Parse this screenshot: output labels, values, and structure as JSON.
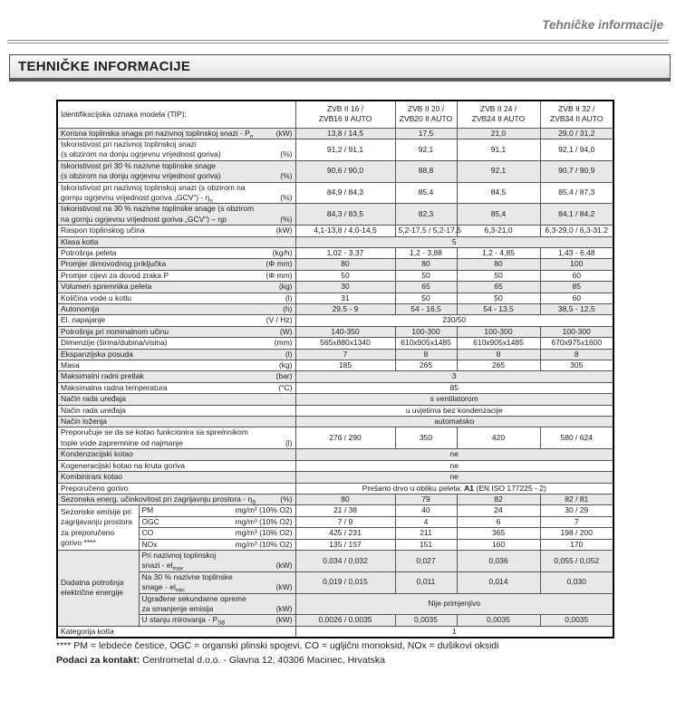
{
  "page": {
    "header_right": "Tehničke informacije",
    "title": "TEHNIČKE INFORMACIJE",
    "footnote": "**** PM = lebdeće čestice, OGC = organski plinski spojevi, CO = ugljični monoksid, NOx = dušikovi oksidi",
    "contact_label": "Podaci za kontakt:",
    "contact_text": " Centrometal d.o.o. - Glavna 12, 40306 Macinec, Hrvatska"
  },
  "table": {
    "id_label": "Identifikacijska oznaka modela (TIP):",
    "models": [
      [
        "ZVB II 16 /",
        "ZVB16 II AUTO"
      ],
      [
        "ZVB II 20 /",
        "ZVB20 II AUTO"
      ],
      [
        "ZVB II 24 /",
        "ZVB24 II AUTO"
      ],
      [
        "ZVB II 32 /",
        "ZVB34 II AUTO"
      ]
    ],
    "rows": [
      {
        "label": [
          "Korisna toplinska snaga pri nazivnoj toplinskoj snazi - P~n~"
        ],
        "unit": "(kW)",
        "values": [
          "13,8 / 14,5",
          "17,5",
          "21,0",
          "29,0 / 31,2"
        ],
        "shade": true
      },
      {
        "label": [
          "Iskoristivost pri nazivnoj toplinskoj snazi",
          "(s obzirom na donju ogrjevnu vrijednost goriva)"
        ],
        "unit": "(%)",
        "values": [
          "91,2 / 91,1",
          "92,1",
          "91,1",
          "92,1 / 94,0"
        ],
        "shade": false
      },
      {
        "label": [
          "Iskoristivost pri 30 % nazivne toplinske snage",
          "(s obzirom na donju ogrjevnu vrijednost goriva)"
        ],
        "unit": "(%)",
        "values": [
          "90,6 / 90,0",
          "88,8",
          "92,1",
          "90,7 / 90,9"
        ],
        "shade": true
      },
      {
        "label": [
          "Iskoristivost pri nazivnoj toplinskoj snazi (s obzirom na",
          "gornju ogrjevnu vrijednost goriva „GCV“) - η~n~"
        ],
        "unit": "(%)",
        "values": [
          "84,9 / 84,3",
          "85,4",
          "84,5",
          "85,4 / 87,3"
        ],
        "shade": false
      },
      {
        "label": [
          "Iskoristivost na 30 % nazivne toplinske snage (s obzirom",
          "na gornju ogrjevnu vrijednost goriva „GCV“) – ηp"
        ],
        "unit": "(%)",
        "values": [
          "84,3 / 83,5",
          "82,3",
          "85,4",
          "84,1 / 84,2"
        ],
        "shade": true
      },
      {
        "label": [
          "Raspon toplinskog učina"
        ],
        "unit": "(kW)",
        "values": [
          "4,1-13,8 / 4,0-14,5",
          "5,2-17,5 / 5,2-17,5",
          "6,3-21,0",
          "6,3-29,0 / 6,3-31,2"
        ],
        "shade": false
      },
      {
        "label": [
          "Klasa kotla"
        ],
        "unit": "",
        "span": "5",
        "shade": true
      },
      {
        "label": [
          "Potrošnja peleta"
        ],
        "unit": "(kg/h)",
        "values": [
          "1,02 - 3,37",
          "1,2 - 3,88",
          "1,2 - 4,85",
          "1,43 - 6,48"
        ],
        "shade": false
      },
      {
        "label": [
          "Promjer dimovodnog priključka"
        ],
        "unit": "(Φ mm)",
        "values": [
          "80",
          "80",
          "80",
          "100"
        ],
        "shade": true
      },
      {
        "label": [
          "Promjer cijevi za dovod zraka P"
        ],
        "unit": "(Φ mm)",
        "values": [
          "50",
          "50",
          "50",
          "60"
        ],
        "shade": false
      },
      {
        "label": [
          "Volumen spremnika peleta"
        ],
        "unit": "(kg)",
        "values": [
          "30",
          "65",
          "65",
          "85"
        ],
        "shade": true
      },
      {
        "label": [
          "Količina vode u kotlu"
        ],
        "unit": "(l)",
        "values": [
          "31",
          "50",
          "50",
          "60"
        ],
        "shade": false
      },
      {
        "label": [
          "Autonomija"
        ],
        "unit": "(h)",
        "values": [
          "29,5 - 9",
          "54 - 16,5",
          "54 - 13,5",
          "38,5 - 12,5"
        ],
        "shade": true
      },
      {
        "label": [
          "El. napajanje"
        ],
        "unit": "(V / Hz)",
        "span": "230/50",
        "shade": false
      },
      {
        "label": [
          "Potrošnja pri nominalnom učinu"
        ],
        "unit": "(W)",
        "values": [
          "140-350",
          "100-300",
          "100-300",
          "100-300"
        ],
        "shade": true
      },
      {
        "label": [
          "Dimenzije (širina/dubina/visina)"
        ],
        "unit": "(mm)",
        "values": [
          "565x880x1340",
          "610x905x1485",
          "610x905x1485",
          "670x975x1600"
        ],
        "shade": false
      },
      {
        "label": [
          "Ekspanzijska posuda"
        ],
        "unit": "(l)",
        "values": [
          "7",
          "8",
          "8",
          "8"
        ],
        "shade": true
      },
      {
        "label": [
          "Masa"
        ],
        "unit": "(kg)",
        "values": [
          "185",
          "265",
          "265",
          "305"
        ],
        "shade": false
      },
      {
        "label": [
          "Maksimalni radni pretlak"
        ],
        "unit": "(bar)",
        "span": "3",
        "shade": true
      },
      {
        "label": [
          "Maksimalna radna temperatura"
        ],
        "unit": "(°C)",
        "span": "85",
        "shade": false
      },
      {
        "label": [
          "Način rada uređaja"
        ],
        "unit": "",
        "span": "s ventilatorom",
        "shade": true
      },
      {
        "label": [
          "Način rada uređaja"
        ],
        "unit": "",
        "span": "u uvjetima bez kondenzacije",
        "shade": false
      },
      {
        "label": [
          "Način loženja"
        ],
        "unit": "",
        "span": "automatsko",
        "shade": true
      },
      {
        "label": [
          "Preporučuje se da se kotao funkcionira sa spremnikom",
          "tople vode zapremnine od najmanje"
        ],
        "unit": "(l)",
        "values": [
          "276 / 290",
          "350",
          "420",
          "580 / 624"
        ],
        "shade": false
      },
      {
        "label": [
          "Kondenzacijski kotao"
        ],
        "unit": "",
        "span": "ne",
        "shade": true
      },
      {
        "label": [
          "Kogeneracijski kotao na kruta goriva"
        ],
        "unit": "",
        "span": "ne",
        "shade": false
      },
      {
        "label": [
          "Kombinirani kotao"
        ],
        "unit": "",
        "span": "ne",
        "shade": true
      },
      {
        "label": [
          "Preporučeno gorivo"
        ],
        "unit": "",
        "span": "Prešano drvo u obliku peleta: *A1* (EN ISO 177225 - 2)",
        "shade": false
      },
      {
        "label": [
          "Sezonska energ. učinkovitost pri zagrijavnju prostora - η~S~"
        ],
        "unit": "(%)",
        "values": [
          "80",
          "79",
          "82",
          "82 / 81"
        ],
        "shade": true
      },
      {
        "group": [
          "Sezonske emisije pri",
          "zagrijavanju prostora",
          "za preporučeno",
          "gorivo ****"
        ],
        "shade": false,
        "subrows": [
          {
            "label": [
              "PM"
            ],
            "unit": "mg/m³ (10% O2)",
            "values": [
              "21 / 38",
              "40",
              "24",
              "30 / 29"
            ]
          },
          {
            "label": [
              "OGC"
            ],
            "unit": "mg/m³ (10% O2)",
            "values": [
              "7 / 9",
              "4",
              "6",
              "7"
            ]
          },
          {
            "label": [
              "CO"
            ],
            "unit": "mg/m³ (10% O2)",
            "values": [
              "425 / 231",
              "211",
              "365",
              "198 / 200"
            ]
          },
          {
            "label": [
              "NOx"
            ],
            "unit": "mg/m³ (10% O2)",
            "values": [
              "135 / 157",
              "151",
              "160",
              "170"
            ]
          }
        ]
      },
      {
        "group": [
          "Dodatna potrošnja",
          "električne energije"
        ],
        "shade": true,
        "subrows": [
          {
            "label": [
              "Pri nazivnoj toplinskoj",
              "snazi - el~max~"
            ],
            "unit": "(kW)",
            "values": [
              "0,034 / 0,032",
              "0,027",
              "0,036",
              "0,055 / 0,052"
            ]
          },
          {
            "label": [
              "Na 30 % nazivne toplinske",
              "snage - el~min~"
            ],
            "unit": "(kW)",
            "values": [
              "0,019 / 0,015",
              "0,011",
              "0,014",
              "0,030"
            ]
          },
          {
            "label": [
              "Ugrađene sekundarne opreme",
              "za smanjenje emisija"
            ],
            "unit": "(kW)",
            "span": "Nije primjenjivo"
          },
          {
            "label": [
              "U stanju mirovanja - P~SB~"
            ],
            "unit": "(kW)",
            "values": [
              "0,0026 / 0,0035",
              "0,0035",
              "0,0035",
              "0,0035"
            ]
          }
        ]
      },
      {
        "label": [
          "Kategorija kotla"
        ],
        "unit": "",
        "span": "1",
        "shade": false
      }
    ]
  }
}
